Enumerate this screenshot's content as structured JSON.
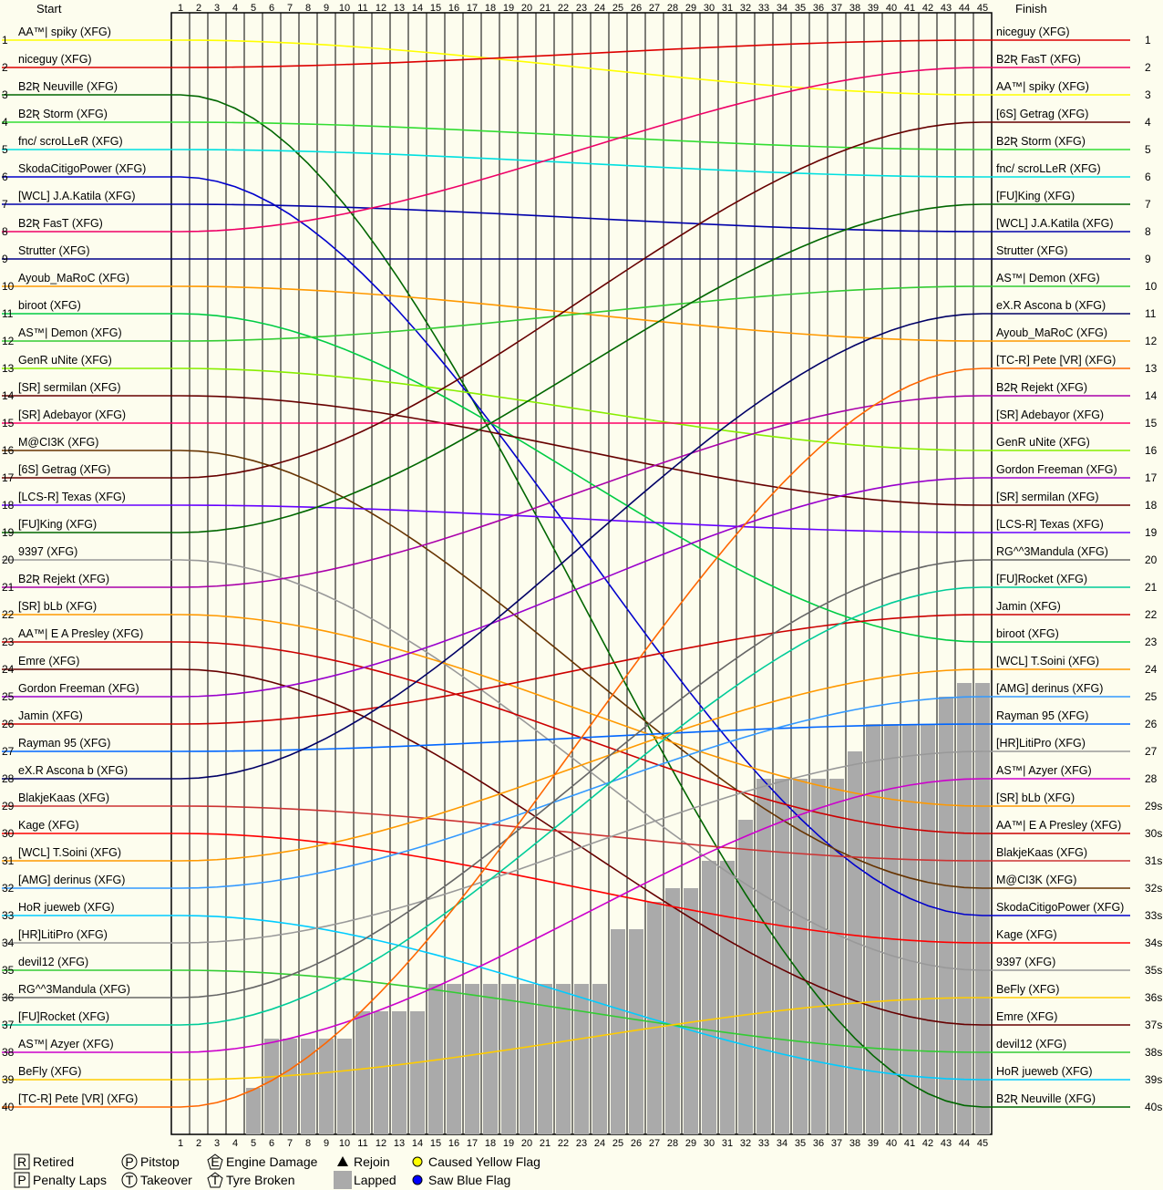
{
  "chart_data": {
    "type": "line",
    "title": "",
    "xlabel": "",
    "ylabel": "",
    "header": {
      "start_label": "Start",
      "finish_label": "Finish"
    },
    "laps": 45,
    "positions": 40,
    "x": [
      1,
      2,
      3,
      4,
      5,
      6,
      7,
      8,
      9,
      10,
      11,
      12,
      13,
      14,
      15,
      16,
      17,
      18,
      19,
      20,
      21,
      22,
      23,
      24,
      25,
      26,
      27,
      28,
      29,
      30,
      31,
      32,
      33,
      34,
      35,
      36,
      37,
      38,
      39,
      40,
      41,
      42,
      43,
      44,
      45
    ],
    "y_axis": {
      "label_values": [
        1,
        2,
        3,
        4,
        5,
        6,
        7,
        8,
        9,
        10,
        11,
        12,
        13,
        14,
        15,
        16,
        17,
        18,
        19,
        20,
        21,
        22,
        23,
        24,
        25,
        26,
        27,
        28,
        29,
        30,
        31,
        32,
        33,
        34,
        35,
        36,
        37,
        38,
        39,
        40
      ],
      "inverted": true
    },
    "right_position_labels": [
      "1",
      "2",
      "3",
      "4",
      "5",
      "6",
      "7",
      "8",
      "9",
      "10",
      "11",
      "12",
      "13",
      "14",
      "15",
      "16",
      "17",
      "18",
      "19",
      "20",
      "21",
      "22",
      "23",
      "24",
      "25",
      "26",
      "27",
      "28",
      "29s",
      "30s",
      "31s",
      "32s",
      "33s",
      "34s",
      "35s",
      "36s",
      "37s",
      "38s",
      "39s",
      "40s"
    ],
    "start_grid": [
      "AA™| spiky (XFG)",
      "niceguy (XFG)",
      "B2Ʀ Neuville (XFG)",
      "B2Ʀ Storm (XFG)",
      "fnc/ scroLLeR (XFG)",
      "SkodaCitigoPower (XFG)",
      "[WCL] J.A.Katila (XFG)",
      "B2Ʀ FasT (XFG)",
      "Strutter (XFG)",
      "Ayoub_MaRoC (XFG)",
      "biroot (XFG)",
      "AS™| Demon (XFG)",
      "GenR uNite (XFG)",
      "[SR] sermilan (XFG)",
      "[SR] Adebayor (XFG)",
      "M@CI3K (XFG)",
      "[6S] Getrag (XFG)",
      "[LCS-R] Texas (XFG)",
      "[FU]King (XFG)",
      "9397 (XFG)",
      "B2Ʀ Rejekt (XFG)",
      "[SR] bLb (XFG)",
      "AA™| E A Presley (XFG)",
      "Emre (XFG)",
      "Gordon Freeman (XFG)",
      "Jamin (XFG)",
      "Rayman 95 (XFG)",
      "eX.R Ascona b (XFG)",
      "BlakjeKaas (XFG)",
      "Kage (XFG)",
      "[WCL] T.Soini (XFG)",
      "[AMG] derinus (XFG)",
      "HoR jueweb (XFG)",
      "[HR]LitiPro (XFG)",
      "devil12 (XFG)",
      "RG^^3Mandula (XFG)",
      "[FU]Rocket (XFG)",
      "AS™| Azyer (XFG)",
      "BeFly (XFG)",
      "[TC-R] Pete [VR] (XFG)"
    ],
    "finish_order": [
      "niceguy (XFG)",
      "B2Ʀ FasT (XFG)",
      "AA™| spiky (XFG)",
      "[6S] Getrag (XFG)",
      "B2Ʀ Storm (XFG)",
      "fnc/ scroLLeR (XFG)",
      "[FU]King (XFG)",
      "[WCL] J.A.Katila (XFG)",
      "Strutter (XFG)",
      "AS™| Demon (XFG)",
      "eX.R Ascona b (XFG)",
      "Ayoub_MaRoC (XFG)",
      "[TC-R] Pete [VR] (XFG)",
      "B2Ʀ Rejekt (XFG)",
      "[SR] Adebayor (XFG)",
      "GenR uNite (XFG)",
      "Gordon Freeman (XFG)",
      "[SR] sermilan (XFG)",
      "[LCS-R] Texas (XFG)",
      "RG^^3Mandula (XFG)",
      "[FU]Rocket (XFG)",
      "Jamin (XFG)",
      "biroot (XFG)",
      "[WCL] T.Soini (XFG)",
      "[AMG] derinus (XFG)",
      "Rayman 95 (XFG)",
      "[HR]LitiPro (XFG)",
      "AS™| Azyer (XFG)",
      "[SR] bLb (XFG)",
      "AA™| E A Presley (XFG)",
      "BlakjeKaas (XFG)",
      "M@CI3K (XFG)",
      "SkodaCitigoPower (XFG)",
      "Kage (XFG)",
      "9397 (XFG)",
      "BeFly (XFG)",
      "Emre (XFG)",
      "devil12 (XFG)",
      "HoR jueweb (XFG)",
      "B2Ʀ Neuville (XFG)"
    ],
    "series_colors": [
      "#ffff00",
      "#dd0000",
      "#006600",
      "#33dd33",
      "#00e0e0",
      "#0000cc",
      "#0000aa",
      "#ee0066",
      "#000088",
      "#ff9900",
      "#00cc44",
      "#33cc33",
      "#88ee00",
      "#660000",
      "#ff0066",
      "#663300",
      "#660000",
      "#6600ff",
      "#006600",
      "#999999",
      "#aa00aa",
      "#ff9900",
      "#cc0000",
      "#660000",
      "#9900cc",
      "#cc0000",
      "#0066ff",
      "#000066",
      "#cc3333",
      "#ff0000",
      "#ff9900",
      "#3399ff",
      "#00ccff",
      "#999999",
      "#33cc33",
      "#666666",
      "#00cc99",
      "#cc00cc",
      "#ffcc00",
      "#ff6600"
    ],
    "lapped_steps": [
      [
        5,
        39.3
      ],
      [
        6,
        37.5
      ],
      [
        11,
        36.5
      ],
      [
        15,
        35.5
      ],
      [
        25,
        33.5
      ],
      [
        27,
        32.5
      ],
      [
        28,
        32
      ],
      [
        30,
        31
      ],
      [
        32,
        29.5
      ],
      [
        33,
        28
      ],
      [
        38,
        27
      ],
      [
        39,
        26
      ],
      [
        43,
        25
      ],
      [
        44,
        24.5
      ],
      [
        45,
        24.5
      ]
    ],
    "legend": [
      {
        "key": "retired",
        "symbol": "R",
        "label": "Retired"
      },
      {
        "key": "pitstop",
        "symbol": "P",
        "label": "Pitstop"
      },
      {
        "key": "engine",
        "symbol": "E",
        "label": "Engine Damage"
      },
      {
        "key": "rejoin",
        "symbol": "▲",
        "label": "Rejoin"
      },
      {
        "key": "yellow",
        "symbol": "●",
        "label": "Caused Yellow Flag",
        "color": "#ffff00"
      },
      {
        "key": "penalty",
        "symbol": "P",
        "label": "Penalty Laps"
      },
      {
        "key": "takeover",
        "symbol": "T",
        "label": "Takeover"
      },
      {
        "key": "tyre",
        "symbol": "T",
        "label": "Tyre Broken"
      },
      {
        "key": "lapped",
        "symbol": "■",
        "label": "Lapped",
        "color": "#aaaaaa"
      },
      {
        "key": "blue",
        "symbol": "●",
        "label": "Saw Blue Flag",
        "color": "#0000ff"
      }
    ]
  }
}
